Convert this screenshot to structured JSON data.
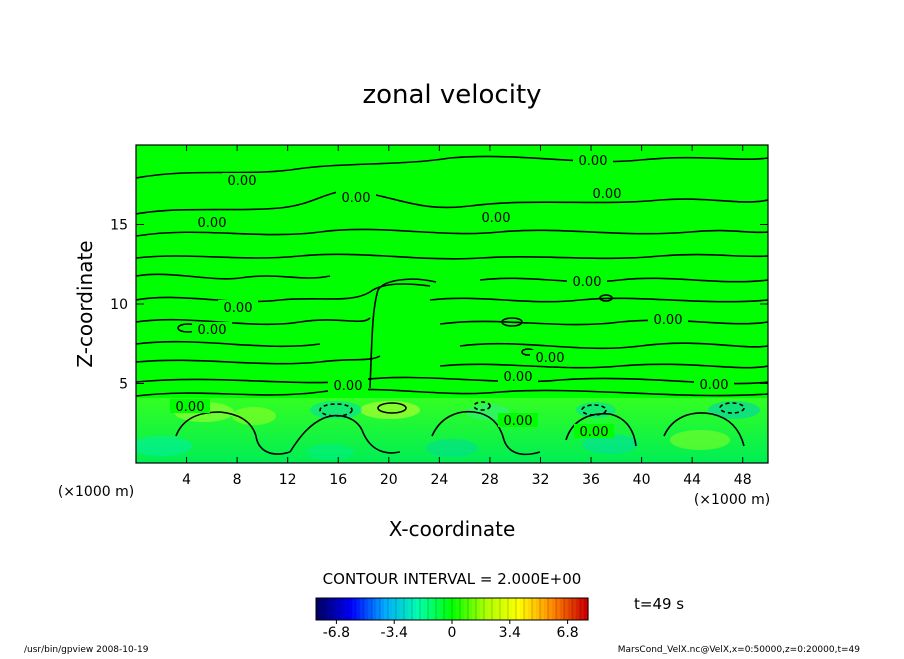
{
  "chart_data": {
    "type": "heatmap",
    "title": "zonal velocity",
    "xlabel": "X-coordinate",
    "ylabel": "Z-coordinate",
    "x_unit": "(×1000 m)",
    "y_unit": "(×1000 m)",
    "xlim": [
      0,
      50
    ],
    "ylim": [
      0,
      20
    ],
    "x_ticks": [
      4,
      8,
      12,
      16,
      20,
      24,
      28,
      32,
      36,
      40,
      44,
      48
    ],
    "y_ticks": [
      5,
      10,
      15
    ],
    "contour_interval": "CONTOUR INTERVAL = 2.000E+00",
    "contour_label": "0.00",
    "time_label": "t=49 s",
    "colorbar": {
      "ticks": [
        "-6.8",
        "-3.4",
        "0",
        "3.4",
        "6.8"
      ],
      "range": [
        -8,
        8
      ],
      "colors": [
        "#000066",
        "#0000ff",
        "#00aaff",
        "#00ffaa",
        "#00ff00",
        "#aaff00",
        "#ffff00",
        "#ff8800",
        "#cc0000"
      ]
    },
    "field_background": "#00ff00",
    "footer_left": "/usr/bin/gpview   2008-10-19",
    "footer_right": "MarsCond_VelX.nc@VelX,x=0:50000,z=0:20000,t=49"
  }
}
